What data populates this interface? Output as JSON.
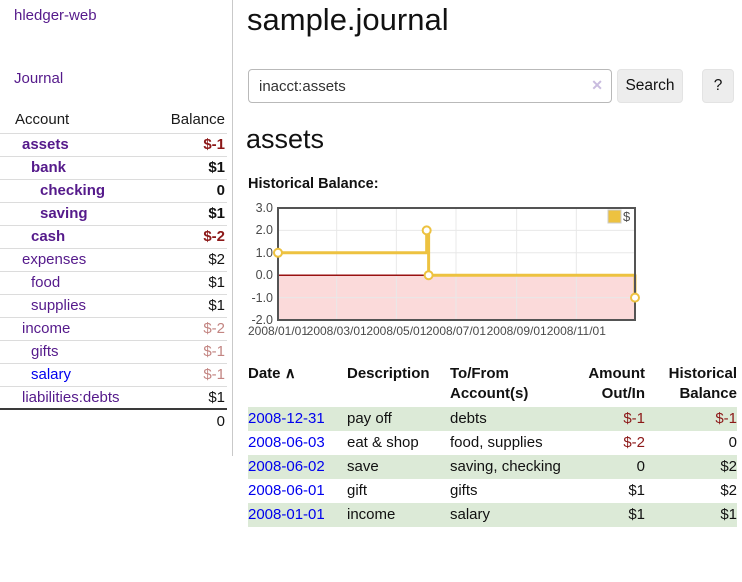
{
  "sidebar": {
    "brand": "hledger-web",
    "journal_link": "Journal",
    "accounts": {
      "col_account": "Account",
      "col_balance": "Balance",
      "rows": [
        {
          "name": "assets",
          "balance": "$-1"
        },
        {
          "name": "bank",
          "balance": "$1"
        },
        {
          "name": "checking",
          "balance": "0"
        },
        {
          "name": "saving",
          "balance": "$1"
        },
        {
          "name": "cash",
          "balance": "$-2"
        },
        {
          "name": "expenses",
          "balance": "$2"
        },
        {
          "name": "food",
          "balance": "$1"
        },
        {
          "name": "supplies",
          "balance": "$1"
        },
        {
          "name": "income",
          "balance": "$-2"
        },
        {
          "name": "gifts",
          "balance": "$-1"
        },
        {
          "name": "salary",
          "balance": "$-1"
        },
        {
          "name": "liabilities:debts",
          "balance": "$1"
        }
      ],
      "total": "0"
    }
  },
  "main": {
    "title": "sample.journal",
    "search": {
      "value": "inacct:assets",
      "clear_icon": "✕",
      "search_button": "Search",
      "help_button": "?"
    },
    "account_heading": "assets",
    "chart_title": "Historical Balance:"
  },
  "chart_data": {
    "type": "line",
    "step": true,
    "title": "Historical Balance:",
    "series": [
      {
        "name": "$",
        "color": "#EDC240",
        "points": [
          [
            "2008-01-01",
            1
          ],
          [
            "2008-06-01",
            2
          ],
          [
            "2008-06-03",
            0
          ],
          [
            "2008-12-31",
            -1
          ]
        ]
      }
    ],
    "x_range": [
      "2008-01-01",
      "2008-12-31"
    ],
    "x_ticks": [
      "2008/01/01",
      "2008/03/01",
      "2008/05/01",
      "2008/07/01",
      "2008/09/01",
      "2008/11/01"
    ],
    "y_ticks": [
      3.0,
      2.0,
      1.0,
      0.0,
      -1.0,
      -2.0
    ],
    "ylim": [
      -2,
      3
    ],
    "legend": {
      "label": "$",
      "position": "top-right"
    },
    "grid": true,
    "negative_region_color": "#fbdada",
    "zero_line_color": "#991111",
    "border_color": "#545454",
    "gridline_color": "#e8e8e8"
  },
  "register": {
    "headers": {
      "date": "Date",
      "sort_asc_icon": "∧",
      "description": "Description",
      "accounts": "To/From Account(s)",
      "amount": "Amount Out/In",
      "balance": "Historical Balance"
    },
    "rows": [
      {
        "date": "2008-12-31",
        "description": "pay off",
        "accounts": "debts",
        "amount": "$-1",
        "balance": "$-1"
      },
      {
        "date": "2008-06-03",
        "description": "eat & shop",
        "accounts": "food, supplies",
        "amount": "$-2",
        "balance": "0"
      },
      {
        "date": "2008-06-02",
        "description": "save",
        "accounts": "saving, checking",
        "amount": "0",
        "balance": "$2"
      },
      {
        "date": "2008-06-01",
        "description": "gift",
        "accounts": "gifts",
        "amount": "$1",
        "balance": "$2"
      },
      {
        "date": "2008-01-01",
        "description": "income",
        "accounts": "salary",
        "amount": "$1",
        "balance": "$1"
      }
    ]
  },
  "colors": {
    "link_purple": "#551a8b",
    "link_blue": "#0000ee",
    "negative_strong": "#8c1818",
    "negative_dim": "#c38582",
    "row_stripe_green": "#dcead7",
    "chart_line_gold": "#EDC240",
    "chart_negative_fill": "#fbdada",
    "chart_zero_line": "#991111",
    "chart_border": "#545454"
  }
}
